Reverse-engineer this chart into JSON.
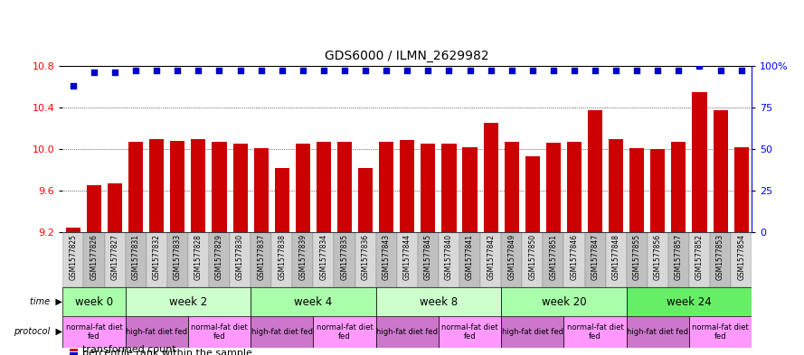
{
  "title": "GDS6000 / ILMN_2629982",
  "samples": [
    "GSM1577825",
    "GSM1577826",
    "GSM1577827",
    "GSM1577831",
    "GSM1577832",
    "GSM1577833",
    "GSM1577828",
    "GSM1577829",
    "GSM1577830",
    "GSM1577837",
    "GSM1577838",
    "GSM1577839",
    "GSM1577834",
    "GSM1577835",
    "GSM1577836",
    "GSM1577843",
    "GSM1577844",
    "GSM1577845",
    "GSM1577840",
    "GSM1577841",
    "GSM1577842",
    "GSM1577849",
    "GSM1577850",
    "GSM1577851",
    "GSM1577846",
    "GSM1577847",
    "GSM1577848",
    "GSM1577855",
    "GSM1577856",
    "GSM1577857",
    "GSM1577852",
    "GSM1577853",
    "GSM1577854"
  ],
  "bar_values": [
    9.25,
    9.65,
    9.67,
    10.07,
    10.1,
    10.08,
    10.1,
    10.07,
    10.05,
    10.01,
    9.82,
    10.05,
    10.07,
    10.07,
    9.82,
    10.07,
    10.09,
    10.05,
    10.05,
    10.02,
    10.25,
    10.07,
    9.93,
    10.06,
    10.07,
    10.37,
    10.1,
    10.01,
    10.0,
    10.07,
    10.55,
    10.37,
    10.02
  ],
  "percentile_values": [
    88,
    96,
    96,
    97,
    97,
    97,
    97,
    97,
    97,
    97,
    97,
    97,
    97,
    97,
    97,
    97,
    97,
    97,
    97,
    97,
    97,
    97,
    97,
    97,
    97,
    97,
    97,
    97,
    97,
    97,
    100,
    97,
    97
  ],
  "bar_color": "#cc0000",
  "percentile_color": "#0000cc",
  "ylim_left": [
    9.2,
    10.8
  ],
  "yticks_left": [
    9.2,
    9.6,
    10.0,
    10.4,
    10.8
  ],
  "right_yticks": [
    0,
    25,
    50,
    75,
    100
  ],
  "right_ylim": [
    0,
    100
  ],
  "time_groups": [
    {
      "label": "week 0",
      "start": 0,
      "end": 3,
      "color": "#aaffaa"
    },
    {
      "label": "week 2",
      "start": 3,
      "end": 9,
      "color": "#ccffcc"
    },
    {
      "label": "week 4",
      "start": 9,
      "end": 15,
      "color": "#aaffaa"
    },
    {
      "label": "week 8",
      "start": 15,
      "end": 21,
      "color": "#ccffcc"
    },
    {
      "label": "week 20",
      "start": 21,
      "end": 27,
      "color": "#aaffaa"
    },
    {
      "label": "week 24",
      "start": 27,
      "end": 33,
      "color": "#66ee66"
    }
  ],
  "protocol_groups": [
    {
      "label": "normal-fat diet\nfed",
      "start": 0,
      "end": 3,
      "color": "#ff99ff"
    },
    {
      "label": "high-fat diet fed",
      "start": 3,
      "end": 6,
      "color": "#cc77cc"
    },
    {
      "label": "normal-fat diet\nfed",
      "start": 6,
      "end": 9,
      "color": "#ff99ff"
    },
    {
      "label": "high-fat diet fed",
      "start": 9,
      "end": 12,
      "color": "#cc77cc"
    },
    {
      "label": "normal-fat diet\nfed",
      "start": 12,
      "end": 15,
      "color": "#ff99ff"
    },
    {
      "label": "high-fat diet fed",
      "start": 15,
      "end": 18,
      "color": "#cc77cc"
    },
    {
      "label": "normal-fat diet\nfed",
      "start": 18,
      "end": 21,
      "color": "#ff99ff"
    },
    {
      "label": "high-fat diet fed",
      "start": 21,
      "end": 24,
      "color": "#cc77cc"
    },
    {
      "label": "normal-fat diet\nfed",
      "start": 24,
      "end": 27,
      "color": "#ff99ff"
    },
    {
      "label": "high-fat diet fed",
      "start": 27,
      "end": 30,
      "color": "#cc77cc"
    },
    {
      "label": "normal-fat diet\nfed",
      "start": 30,
      "end": 33,
      "color": "#ff99ff"
    }
  ],
  "sample_bg_colors": [
    "#d8d8d8",
    "#c0c0c0"
  ]
}
